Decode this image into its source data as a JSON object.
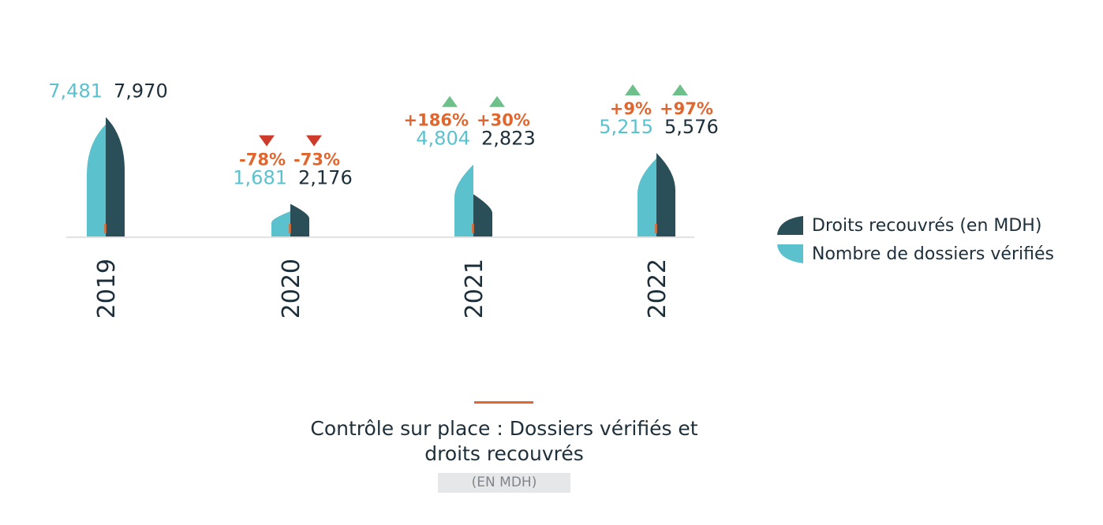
{
  "colors": {
    "dossiers": "#5bc1cc",
    "droits": "#2b4f59",
    "increase": "#6ec08a",
    "decrease": "#cf3b2a",
    "pct_text": "#e0662f",
    "axis": "#d9d9d9",
    "value_dark": "#1d2f3a"
  },
  "chart_data": {
    "type": "bar",
    "categories": [
      "2019",
      "2020",
      "2021",
      "2022"
    ],
    "series": [
      {
        "name": "Nombre de dossiers vérifiés",
        "values": [
          7481,
          1681,
          4804,
          5215
        ],
        "labels": [
          "7,481",
          "1,681",
          "4,804",
          "5,215"
        ],
        "changes": [
          "",
          "-78%",
          "+186%",
          "+9%"
        ],
        "trend": [
          "",
          "down",
          "up",
          "up"
        ]
      },
      {
        "name": "Droits recouvrés (en MDH)",
        "values": [
          7970,
          2176,
          2823,
          5576
        ],
        "labels": [
          "7,970",
          "2,176",
          "2,823",
          "5,576"
        ],
        "changes": [
          "",
          "-73%",
          "+30%",
          "+97%"
        ],
        "trend": [
          "",
          "down",
          "up",
          "up"
        ]
      }
    ],
    "ylim": [
      0,
      8000
    ]
  },
  "legend": [
    {
      "label": "Droits recouvrés (en MDH)",
      "icon": "dark-half-shape-icon"
    },
    {
      "label": "Nombre de dossiers vérifiés",
      "icon": "teal-half-shape-icon"
    }
  ],
  "caption": {
    "line1": "Contrôle sur place : Dossiers vérifiés et",
    "line2": "droits recouvrés",
    "unit": "(EN MDH)"
  }
}
